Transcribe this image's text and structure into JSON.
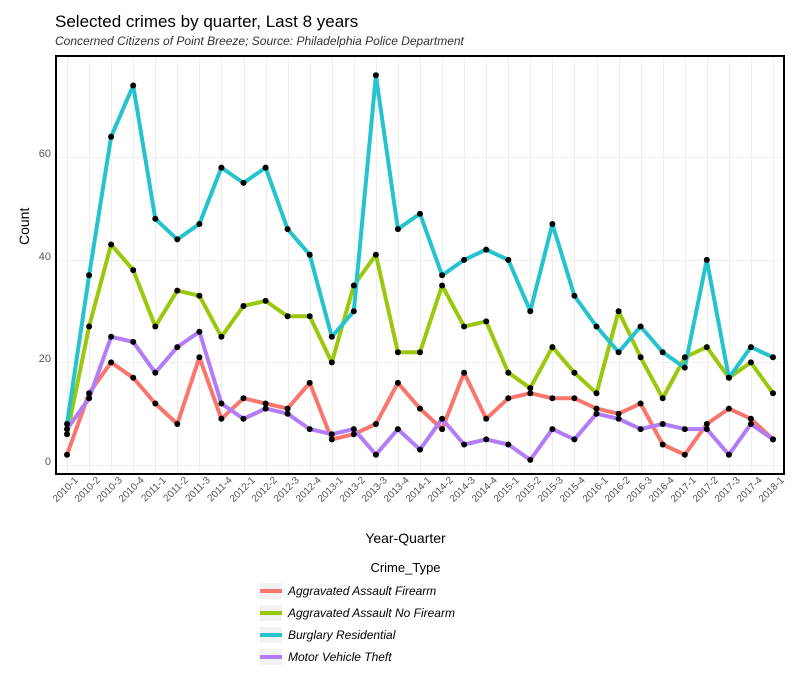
{
  "chart": {
    "title": "Selected crimes by quarter, Last 8 years",
    "subtitle": "Concerned Citizens of Point Breeze; Source: Philadelphia Police Department",
    "xlabel": "Year-Quarter",
    "ylabel": "Count",
    "legend_title": "Crime_Type",
    "background_color": "#ffffff",
    "grid_color": "#eeeeee",
    "border_color": "#000000",
    "point_color": "#000000",
    "point_radius": 3,
    "line_width": 4,
    "ylim": [
      0,
      78
    ],
    "yticks": [
      0,
      20,
      40,
      60
    ],
    "categories": [
      "2010-1",
      "2010-2",
      "2010-3",
      "2010-4",
      "2011-1",
      "2011-2",
      "2011-3",
      "2011-4",
      "2012-1",
      "2012-2",
      "2012-3",
      "2012-4",
      "2013-1",
      "2013-2",
      "2013-3",
      "2013-4",
      "2014-1",
      "2014-2",
      "2014-3",
      "2014-4",
      "2015-1",
      "2015-2",
      "2015-3",
      "2015-4",
      "2016-1",
      "2016-2",
      "2016-3",
      "2016-4",
      "2017-1",
      "2017-2",
      "2017-3",
      "2017-4",
      "2018-1"
    ],
    "series": [
      {
        "name": "Aggravated Assault Firearm",
        "color": "#f8766d",
        "values": [
          2,
          14,
          20,
          17,
          12,
          8,
          21,
          9,
          13,
          12,
          11,
          16,
          5,
          6,
          8,
          16,
          11,
          7,
          18,
          9,
          13,
          14,
          13,
          13,
          11,
          10,
          12,
          4,
          2,
          8,
          11,
          9,
          5
        ]
      },
      {
        "name": "Aggravated Assault No Firearm",
        "color": "#9ac80c",
        "values": [
          6,
          27,
          43,
          38,
          27,
          34,
          33,
          25,
          31,
          32,
          29,
          29,
          20,
          35,
          41,
          22,
          22,
          35,
          27,
          28,
          18,
          15,
          23,
          18,
          14,
          30,
          21,
          13,
          21,
          23,
          17,
          20,
          14
        ]
      },
      {
        "name": "Burglary Residential",
        "color": "#24c3cd",
        "values": [
          8,
          37,
          64,
          74,
          48,
          44,
          47,
          58,
          55,
          58,
          46,
          41,
          25,
          30,
          76,
          46,
          49,
          37,
          40,
          42,
          40,
          30,
          47,
          33,
          27,
          22,
          27,
          22,
          19,
          40,
          17,
          23,
          21
        ]
      },
      {
        "name": "Motor Vehicle Theft",
        "color": "#b27cf7",
        "values": [
          7,
          13,
          25,
          24,
          18,
          23,
          26,
          12,
          9,
          11,
          10,
          7,
          6,
          7,
          2,
          7,
          3,
          9,
          4,
          5,
          4,
          1,
          7,
          5,
          10,
          9,
          7,
          8,
          7,
          7,
          2,
          8,
          5
        ]
      }
    ]
  }
}
